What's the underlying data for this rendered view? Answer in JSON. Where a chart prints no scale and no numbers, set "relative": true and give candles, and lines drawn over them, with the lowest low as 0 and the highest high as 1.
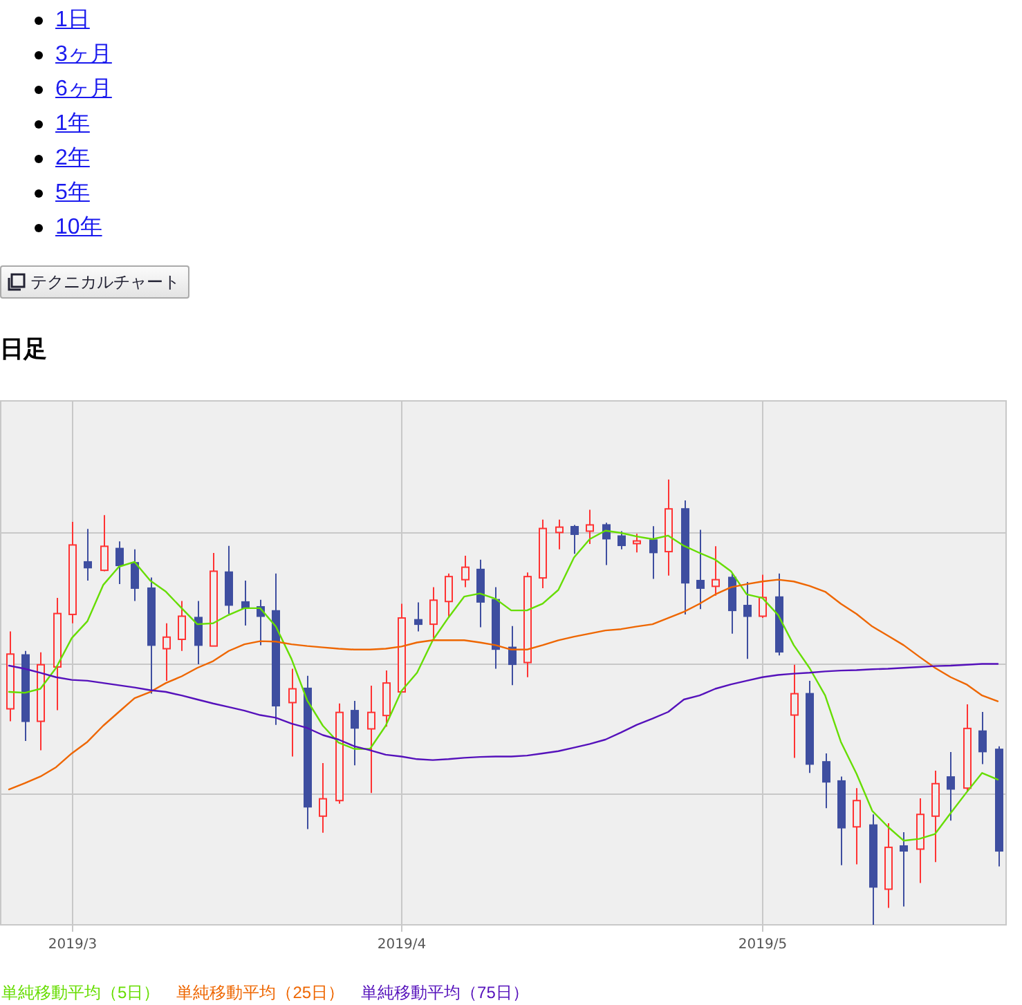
{
  "chart_data": {
    "type": "candlestick",
    "title": "日足",
    "relative": true,
    "grid": true,
    "legend": "bottom",
    "annotations": [
      "1日",
      "3ヶ月",
      "6ヶ月",
      "1年",
      "2年",
      "5年",
      "10年",
      "テクニカルチャート"
    ],
    "categories": [
      null,
      null,
      null,
      null,
      "2019/3",
      null,
      null,
      null,
      null,
      null,
      null,
      null,
      null,
      null,
      null,
      null,
      null,
      null,
      null,
      null,
      null,
      null,
      null,
      null,
      null,
      "2019/4",
      null,
      null,
      null,
      null,
      null,
      null,
      null,
      null,
      null,
      null,
      null,
      null,
      null,
      null,
      null,
      null,
      null,
      null,
      null,
      null,
      null,
      null,
      "2019/5",
      null,
      null,
      null,
      null,
      null,
      null,
      null,
      null,
      null,
      null,
      null,
      null,
      null,
      null,
      null
    ],
    "ohlc": [
      [
        0.485,
        0.659,
        0.457,
        0.608
      ],
      [
        0.606,
        0.615,
        0.413,
        0.457
      ],
      [
        0.457,
        0.612,
        0.392,
        0.584
      ],
      [
        0.579,
        0.734,
        0.482,
        0.699
      ],
      [
        0.697,
        0.905,
        0.677,
        0.853
      ],
      [
        0.815,
        0.889,
        0.773,
        0.802
      ],
      [
        0.796,
        0.92,
        0.794,
        0.85
      ],
      [
        0.845,
        0.861,
        0.765,
        0.807
      ],
      [
        0.813,
        0.843,
        0.727,
        0.756
      ],
      [
        0.756,
        0.78,
        0.519,
        0.628
      ],
      [
        0.62,
        0.677,
        0.548,
        0.646
      ],
      [
        0.641,
        0.727,
        0.615,
        0.693
      ],
      [
        0.69,
        0.727,
        0.585,
        0.628
      ],
      [
        0.626,
        0.835,
        0.626,
        0.794
      ],
      [
        0.792,
        0.851,
        0.698,
        0.718
      ],
      [
        0.725,
        0.773,
        0.672,
        0.711
      ],
      [
        0.714,
        0.73,
        0.628,
        0.693
      ],
      [
        0.705,
        0.789,
        0.449,
        0.492
      ],
      [
        0.499,
        0.575,
        0.378,
        0.53
      ],
      [
        0.531,
        0.559,
        0.215,
        0.265
      ],
      [
        0.244,
        0.363,
        0.207,
        0.283
      ],
      [
        0.279,
        0.497,
        0.272,
        0.477
      ],
      [
        0.481,
        0.503,
        0.358,
        0.442
      ],
      [
        0.44,
        0.537,
        0.296,
        0.477
      ],
      [
        0.47,
        0.571,
        0.445,
        0.543
      ],
      [
        0.523,
        0.721,
        0.523,
        0.689
      ],
      [
        0.685,
        0.724,
        0.659,
        0.675
      ],
      [
        0.675,
        0.758,
        0.644,
        0.729
      ],
      [
        0.726,
        0.789,
        0.69,
        0.782
      ],
      [
        0.775,
        0.829,
        0.758,
        0.803
      ],
      [
        0.798,
        0.82,
        0.668,
        0.725
      ],
      [
        0.73,
        0.758,
        0.575,
        0.619
      ],
      [
        0.623,
        0.671,
        0.538,
        0.585
      ],
      [
        0.589,
        0.791,
        0.556,
        0.782
      ],
      [
        0.779,
        0.91,
        0.756,
        0.89
      ],
      [
        0.881,
        0.91,
        0.843,
        0.893
      ],
      [
        0.894,
        0.898,
        0.833,
        0.877
      ],
      [
        0.884,
        0.932,
        0.855,
        0.898
      ],
      [
        0.898,
        0.903,
        0.808,
        0.867
      ],
      [
        0.873,
        0.884,
        0.843,
        0.852
      ],
      [
        0.856,
        0.878,
        0.836,
        0.862
      ],
      [
        0.864,
        0.895,
        0.777,
        0.836
      ],
      [
        0.838,
        1,
        0.784,
        0.934
      ],
      [
        0.934,
        0.953,
        0.697,
        0.768
      ],
      [
        0.773,
        0.887,
        0.709,
        0.756
      ],
      [
        0.76,
        0.85,
        0.739,
        0.775
      ],
      [
        0.78,
        0.789,
        0.654,
        0.706
      ],
      [
        0.717,
        0.77,
        0.597,
        0.693
      ],
      [
        0.693,
        0.786,
        0.689,
        0.735
      ],
      [
        0.736,
        0.789,
        0.605,
        0.613
      ],
      [
        0.471,
        0.584,
        0.375,
        0.519
      ],
      [
        0.519,
        0.548,
        0.341,
        0.361
      ],
      [
        0.366,
        0.385,
        0.262,
        0.321
      ],
      [
        0.323,
        0.333,
        0.134,
        0.218
      ],
      [
        0.22,
        0.307,
        0.136,
        0.279
      ],
      [
        0.224,
        0.248,
        0,
        0.085
      ],
      [
        0.08,
        0.228,
        0.038,
        0.174
      ],
      [
        0.177,
        0.208,
        0.041,
        0.166
      ],
      [
        0.17,
        0.284,
        0.094,
        0.248
      ],
      [
        0.244,
        0.346,
        0.141,
        0.317
      ],
      [
        0.332,
        0.388,
        0.234,
        0.305
      ],
      [
        0.307,
        0.495,
        0.299,
        0.441
      ],
      [
        0.435,
        0.478,
        0.361,
        0.389
      ],
      [
        0.394,
        0.401,
        0.131,
        0.166
      ]
    ],
    "series": [
      {
        "name": "単純移動平均（5日）",
        "type": "line",
        "color": "#66dd00",
        "values": [
          0.523,
          0.521,
          0.53,
          0.577,
          0.644,
          0.682,
          0.763,
          0.804,
          0.815,
          0.773,
          0.748,
          0.711,
          0.675,
          0.677,
          0.696,
          0.711,
          0.711,
          0.67,
          0.597,
          0.504,
          0.447,
          0.409,
          0.395,
          0.395,
          0.447,
          0.525,
          0.566,
          0.639,
          0.69,
          0.737,
          0.744,
          0.732,
          0.706,
          0.706,
          0.721,
          0.752,
          0.825,
          0.866,
          0.885,
          0.88,
          0.872,
          0.866,
          0.874,
          0.851,
          0.835,
          0.82,
          0.794,
          0.742,
          0.734,
          0.696,
          0.628,
          0.577,
          0.515,
          0.411,
          0.339,
          0.256,
          0.22,
          0.189,
          0.193,
          0.204,
          0.251,
          0.297,
          0.341,
          0.326
        ]
      },
      {
        "name": "単純移動平均（25日）",
        "type": "line",
        "color": "#ee6600",
        "values": [
          0.304,
          0.318,
          0.333,
          0.354,
          0.385,
          0.411,
          0.447,
          0.478,
          0.509,
          0.523,
          0.543,
          0.558,
          0.577,
          0.592,
          0.615,
          0.63,
          0.637,
          0.636,
          0.63,
          0.626,
          0.623,
          0.62,
          0.618,
          0.618,
          0.62,
          0.625,
          0.634,
          0.639,
          0.639,
          0.639,
          0.634,
          0.628,
          0.618,
          0.618,
          0.628,
          0.639,
          0.647,
          0.654,
          0.661,
          0.664,
          0.67,
          0.675,
          0.689,
          0.703,
          0.721,
          0.742,
          0.758,
          0.765,
          0.771,
          0.775,
          0.771,
          0.761,
          0.748,
          0.721,
          0.698,
          0.67,
          0.649,
          0.628,
          0.602,
          0.577,
          0.556,
          0.54,
          0.515,
          0.502
        ]
      },
      {
        "name": "単純移動平均（75日）",
        "type": "line",
        "color": "#5511bb",
        "values": [
          0.582,
          0.575,
          0.566,
          0.556,
          0.55,
          0.548,
          0.543,
          0.538,
          0.533,
          0.527,
          0.523,
          0.515,
          0.506,
          0.497,
          0.489,
          0.481,
          0.471,
          0.465,
          0.452,
          0.442,
          0.426,
          0.416,
          0.401,
          0.392,
          0.382,
          0.378,
          0.372,
          0.37,
          0.372,
          0.375,
          0.377,
          0.378,
          0.378,
          0.38,
          0.385,
          0.39,
          0.398,
          0.406,
          0.416,
          0.432,
          0.449,
          0.463,
          0.478,
          0.506,
          0.515,
          0.53,
          0.54,
          0.548,
          0.556,
          0.561,
          0.564,
          0.566,
          0.569,
          0.571,
          0.572,
          0.574,
          0.575,
          0.577,
          0.579,
          0.581,
          0.582,
          0.584,
          0.586,
          0.586
        ]
      }
    ]
  }
}
